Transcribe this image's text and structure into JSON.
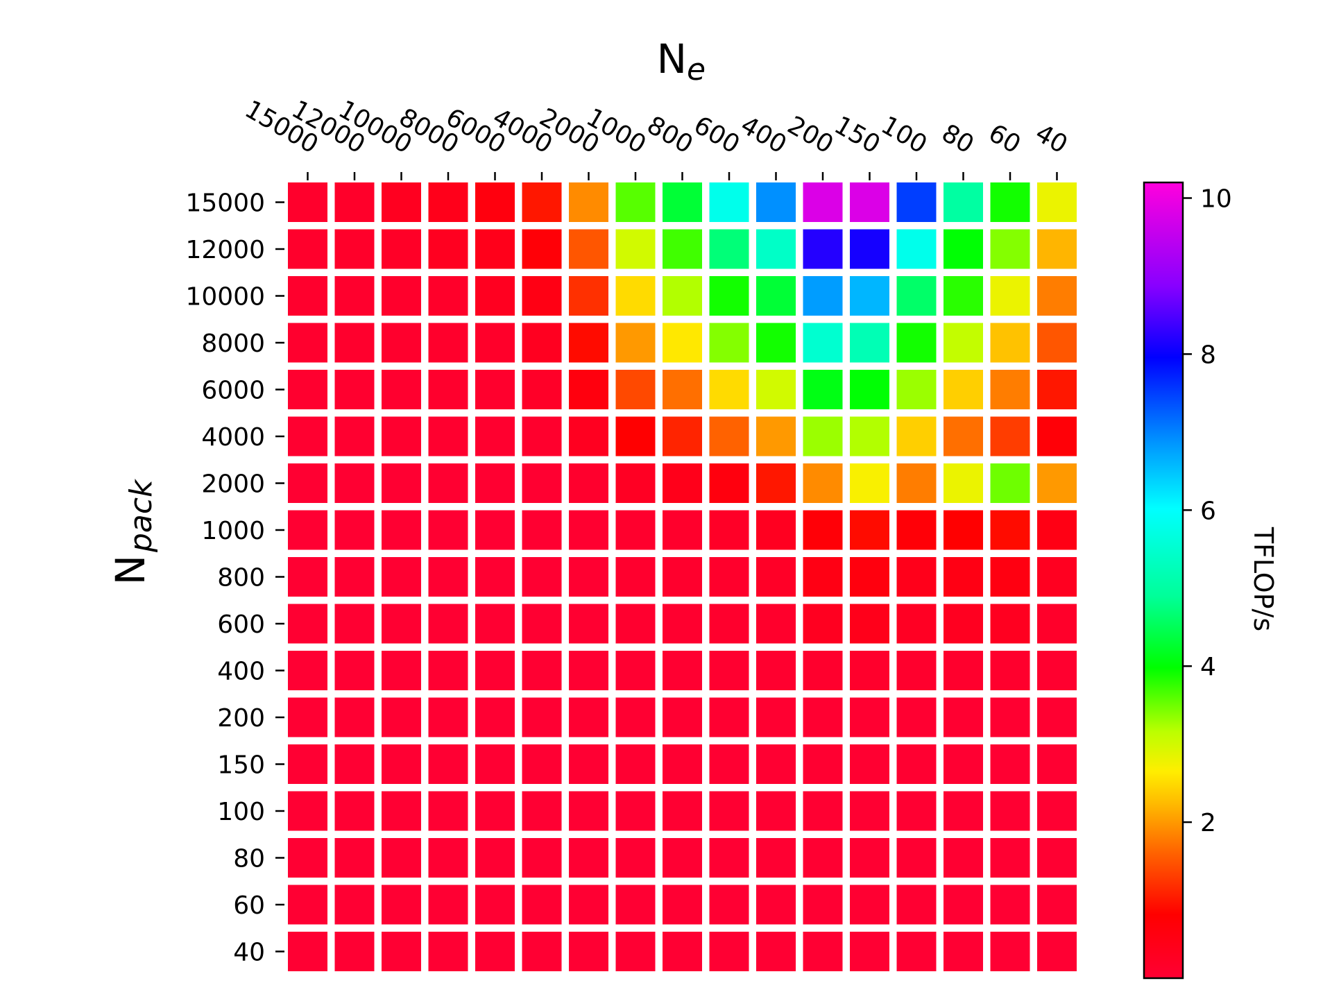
{
  "chart_data": {
    "type": "heatmap",
    "title": "",
    "xlabel": "N",
    "xlabel_sub": "e",
    "ylabel": "N",
    "ylabel_sub": "pack",
    "x_categories": [
      "15000",
      "12000",
      "10000",
      "8000",
      "6000",
      "4000",
      "2000",
      "1000",
      "800",
      "600",
      "400",
      "200",
      "150",
      "100",
      "80",
      "60",
      "40"
    ],
    "y_categories": [
      "15000",
      "12000",
      "10000",
      "8000",
      "6000",
      "4000",
      "2000",
      "1000",
      "800",
      "600",
      "400",
      "200",
      "150",
      "100",
      "80",
      "60",
      "40"
    ],
    "colorbar": {
      "label": "TFLOP/s",
      "min": 0,
      "max": 10.2,
      "ticks": [
        "2",
        "4",
        "6",
        "8",
        "10"
      ],
      "colormap": "gist_rainbow_r"
    },
    "grid": false,
    "legend": "none",
    "values": [
      [
        0.12,
        0.15,
        0.3,
        0.4,
        0.6,
        1.0,
        1.9,
        3.6,
        4.3,
        5.8,
        6.9,
        9.8,
        9.8,
        7.5,
        5.0,
        3.9,
        2.8
      ],
      [
        0.12,
        0.15,
        0.2,
        0.3,
        0.4,
        0.7,
        1.5,
        3.0,
        3.7,
        4.7,
        5.4,
        8.2,
        8.1,
        5.8,
        4.0,
        3.4,
        2.2
      ],
      [
        0.09,
        0.1,
        0.12,
        0.15,
        0.3,
        0.5,
        1.2,
        2.5,
        3.2,
        3.9,
        4.3,
        6.8,
        6.6,
        4.6,
        3.8,
        2.8,
        1.8
      ],
      [
        0.08,
        0.1,
        0.1,
        0.12,
        0.15,
        0.3,
        0.9,
        2.0,
        2.6,
        3.4,
        3.9,
        5.5,
        5.2,
        3.9,
        3.1,
        2.3,
        1.5
      ],
      [
        0.06,
        0.07,
        0.07,
        0.09,
        0.1,
        0.18,
        0.6,
        1.4,
        1.7,
        2.5,
        3.0,
        4.1,
        4.0,
        3.3,
        2.4,
        1.8,
        1.0
      ],
      [
        0.05,
        0.05,
        0.06,
        0.06,
        0.06,
        0.1,
        0.3,
        0.8,
        1.1,
        1.6,
        2.0,
        3.3,
        3.2,
        2.4,
        1.7,
        1.3,
        0.7
      ],
      [
        0.02,
        0.02,
        0.02,
        0.03,
        0.03,
        0.04,
        0.1,
        0.25,
        0.4,
        0.6,
        1.0,
        1.9,
        2.7,
        1.8,
        2.8,
        3.5,
        2.0
      ],
      [
        0.01,
        0.01,
        0.02,
        0.02,
        0.02,
        0.03,
        0.05,
        0.1,
        0.12,
        0.2,
        0.3,
        0.7,
        0.9,
        0.7,
        0.8,
        0.9,
        0.5
      ],
      [
        0.01,
        0.01,
        0.01,
        0.02,
        0.02,
        0.02,
        0.04,
        0.08,
        0.1,
        0.12,
        0.2,
        0.5,
        0.6,
        0.4,
        0.5,
        0.55,
        0.3
      ],
      [
        0.01,
        0.01,
        0.01,
        0.01,
        0.02,
        0.02,
        0.03,
        0.06,
        0.07,
        0.1,
        0.12,
        0.3,
        0.4,
        0.25,
        0.3,
        0.3,
        0.15
      ],
      [
        0.005,
        0.005,
        0.005,
        0.01,
        0.01,
        0.01,
        0.02,
        0.03,
        0.04,
        0.05,
        0.06,
        0.1,
        0.12,
        0.1,
        0.1,
        0.1,
        0.06
      ],
      [
        0.003,
        0.003,
        0.003,
        0.005,
        0.005,
        0.005,
        0.01,
        0.02,
        0.02,
        0.03,
        0.03,
        0.04,
        0.04,
        0.04,
        0.04,
        0.04,
        0.03
      ],
      [
        0.003,
        0.003,
        0.003,
        0.003,
        0.005,
        0.005,
        0.005,
        0.01,
        0.01,
        0.02,
        0.02,
        0.03,
        0.03,
        0.03,
        0.02,
        0.02,
        0.02
      ],
      [
        0.002,
        0.002,
        0.002,
        0.002,
        0.003,
        0.003,
        0.005,
        0.005,
        0.01,
        0.01,
        0.01,
        0.02,
        0.02,
        0.02,
        0.02,
        0.02,
        0.01
      ],
      [
        0.001,
        0.001,
        0.001,
        0.002,
        0.002,
        0.002,
        0.003,
        0.005,
        0.005,
        0.005,
        0.01,
        0.01,
        0.01,
        0.01,
        0.01,
        0.01,
        0.01
      ],
      [
        0.001,
        0.001,
        0.001,
        0.001,
        0.001,
        0.002,
        0.002,
        0.003,
        0.003,
        0.005,
        0.005,
        0.005,
        0.01,
        0.01,
        0.005,
        0.005,
        0.005
      ],
      [
        0.001,
        0.001,
        0.001,
        0.001,
        0.001,
        0.001,
        0.001,
        0.002,
        0.002,
        0.003,
        0.003,
        0.005,
        0.005,
        0.005,
        0.005,
        0.005,
        0.005
      ]
    ]
  }
}
